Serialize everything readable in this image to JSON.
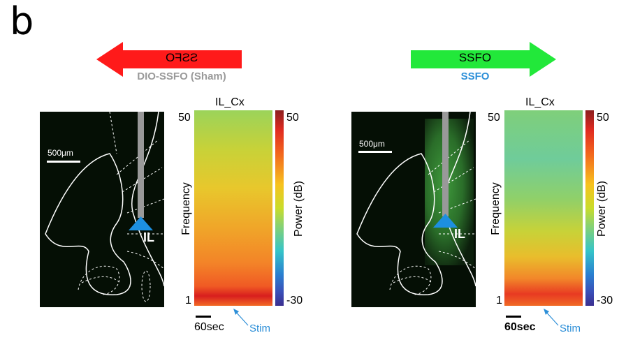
{
  "panel_label": "b",
  "colors": {
    "sham_arrow": "#ff1a1a",
    "ssfo_arrow": "#22e83a",
    "sham_label": "#9a9a9a",
    "ssfo_label": "#2d8fd8",
    "stim_label": "#2d8fd8",
    "optrode": "#999999",
    "fiber_tip": "#1d8fe0"
  },
  "left": {
    "arrow_text": "SSFO",
    "arrow_direction": "left",
    "arrow_text_mirrored": true,
    "condition_label": "DIO-SSFO (Sham)",
    "scale_bar": "500μm",
    "region_label": "IL",
    "spectrogram": {
      "title": "IL_Cx",
      "y_label": "Frequency",
      "y_top": "50",
      "y_bottom": "1",
      "colorbar_label": "Power (dB)",
      "colorbar_top": "50",
      "colorbar_bottom": "-30",
      "time_scale": "60sec",
      "stim_label": "Stim"
    }
  },
  "right": {
    "arrow_text": "SSFO",
    "arrow_direction": "right",
    "arrow_text_mirrored": false,
    "condition_label": "SSFO",
    "scale_bar": "500μm",
    "region_label": "IL",
    "spectrogram": {
      "title": "IL_Cx",
      "y_label": "Frequency",
      "y_top": "50",
      "y_bottom": "1",
      "colorbar_label": "Power (dB)",
      "colorbar_top": "50",
      "colorbar_bottom": "-30",
      "time_scale": "60sec",
      "stim_label": "Stim"
    }
  }
}
